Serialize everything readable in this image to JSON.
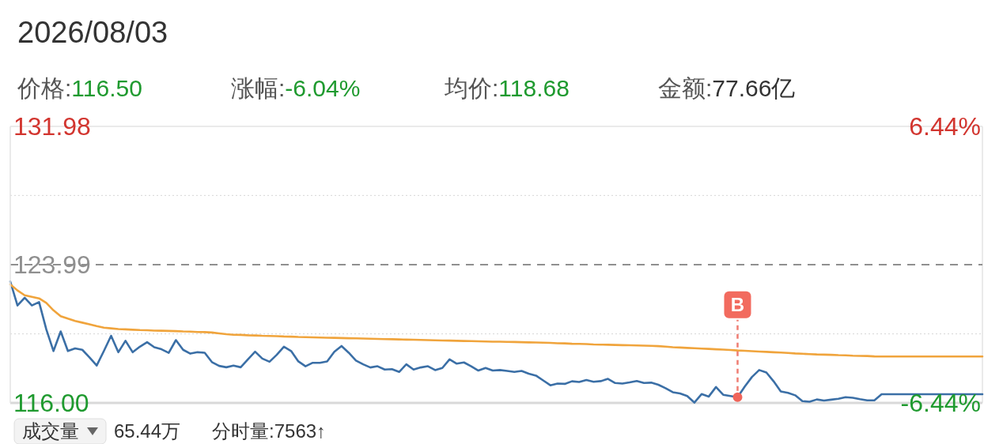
{
  "chart_data": {
    "type": "line",
    "title": "2026/08/03",
    "categories": [
      null,
      null,
      null,
      null,
      null,
      null,
      null,
      null,
      null,
      null,
      null,
      null,
      null,
      null,
      null,
      null,
      null,
      null,
      null,
      null,
      null,
      null,
      null,
      null,
      null,
      null,
      null,
      null,
      null,
      null,
      null,
      null,
      null,
      null,
      null,
      null,
      null,
      null,
      null,
      null,
      null,
      null,
      null,
      null,
      null,
      null,
      null,
      null,
      null,
      null,
      null,
      null,
      null,
      null,
      null,
      null,
      null,
      null,
      null,
      null,
      null,
      null,
      null,
      null,
      null,
      null,
      null,
      null,
      null,
      null,
      null,
      null,
      null,
      null,
      null,
      null,
      null,
      null,
      null,
      null,
      null,
      null,
      null,
      null,
      null,
      null,
      null,
      null,
      null,
      null,
      null,
      null,
      null,
      null,
      null,
      null,
      null,
      null,
      null,
      null,
      null,
      null,
      null,
      null,
      null,
      null,
      null,
      null,
      null,
      null,
      null,
      null,
      null,
      null,
      null,
      null,
      null,
      null,
      null,
      null,
      null,
      null,
      null,
      null,
      null,
      null,
      null,
      null,
      null,
      null,
      null,
      null,
      null,
      null,
      null,
      null
    ],
    "ylim": [
      116.0,
      131.98
    ],
    "yticks": [
      131.98,
      {
        "value": 127.99,
        "label": null
      },
      123.99,
      {
        "value": 119.99,
        "label": null
      },
      {
        "value": 116,
        "label": "116.00"
      }
    ],
    "y2lim": [
      -6.44,
      6.44
    ],
    "y2ticks": [
      {
        "value": 6.44,
        "label": "6.44%"
      },
      {
        "value": -6.44,
        "label": "-6.44%"
      }
    ],
    "grid": "y",
    "ref_lines": [
      {
        "axis": "y",
        "value": 123.99,
        "color": "#8f8f8f",
        "line_style": "dashed"
      }
    ],
    "series": [
      {
        "color": "#3b6fa6",
        "values": [
          123.02,
          121.63,
          122.08,
          121.63,
          121.83,
          120.25,
          119.0,
          120.13,
          119.0,
          119.15,
          119.07,
          118.63,
          118.16,
          119.0,
          119.88,
          118.93,
          119.59,
          118.93,
          119.25,
          119.51,
          119.22,
          119.1,
          118.89,
          119.63,
          119.07,
          118.85,
          118.93,
          118.9,
          118.36,
          118.14,
          118.06,
          118.16,
          118.06,
          118.52,
          118.96,
          118.56,
          118.38,
          118.78,
          119.25,
          119.0,
          118.4,
          118.12,
          118.32,
          118.32,
          118.4,
          118.96,
          119.29,
          118.9,
          118.45,
          118.23,
          118.05,
          118.12,
          117.93,
          117.95,
          117.79,
          118.23,
          117.93,
          118.05,
          118.12,
          117.9,
          118.02,
          118.52,
          118.27,
          118.34,
          118.12,
          117.87,
          118.02,
          117.87,
          117.9,
          117.85,
          117.79,
          117.85,
          117.69,
          117.58,
          117.3,
          117.02,
          117.12,
          117.1,
          117.25,
          117.21,
          117.32,
          117.22,
          117.26,
          117.39,
          117.15,
          117.12,
          117.19,
          117.27,
          117.15,
          117.17,
          117.05,
          116.85,
          116.62,
          116.55,
          116.4,
          116.02,
          116.51,
          116.37,
          116.92,
          116.47,
          116.4,
          116.33,
          116.95,
          117.5,
          117.9,
          117.76,
          117.25,
          116.66,
          116.58,
          116.44,
          116.1,
          116.07,
          116.2,
          116.14,
          116.19,
          116.24,
          116.33,
          116.3,
          116.22,
          116.15,
          116.15,
          116.5,
          116.5,
          116.5,
          116.5,
          116.5,
          116.5,
          116.5,
          116.5,
          116.5,
          116.5,
          116.5,
          116.5,
          116.5,
          116.5,
          116.5
        ]
      },
      {
        "color": "#f0a43c",
        "values": [
          122.85,
          122.5,
          122.22,
          122.13,
          122.04,
          121.78,
          121.35,
          121.01,
          120.87,
          120.74,
          120.64,
          120.54,
          120.44,
          120.35,
          120.31,
          120.27,
          120.25,
          120.23,
          120.21,
          120.2,
          120.18,
          120.17,
          120.16,
          120.15,
          120.13,
          120.12,
          120.1,
          120.09,
          120.07,
          120.02,
          119.97,
          119.94,
          119.93,
          119.91,
          119.9,
          119.88,
          119.87,
          119.86,
          119.84,
          119.83,
          119.81,
          119.8,
          119.79,
          119.78,
          119.77,
          119.76,
          119.75,
          119.74,
          119.73,
          119.72,
          119.71,
          119.7,
          119.69,
          119.68,
          119.67,
          119.66,
          119.65,
          119.64,
          119.63,
          119.62,
          119.61,
          119.6,
          119.59,
          119.58,
          119.57,
          119.56,
          119.55,
          119.54,
          119.54,
          119.53,
          119.52,
          119.51,
          119.5,
          119.49,
          119.48,
          119.47,
          119.45,
          119.44,
          119.42,
          119.41,
          119.4,
          119.38,
          119.37,
          119.36,
          119.35,
          119.34,
          119.33,
          119.32,
          119.31,
          119.3,
          119.28,
          119.25,
          119.22,
          119.2,
          119.18,
          119.16,
          119.14,
          119.12,
          119.1,
          119.08,
          119.06,
          119.03,
          119.01,
          118.99,
          118.97,
          118.95,
          118.93,
          118.91,
          118.89,
          118.86,
          118.84,
          118.82,
          118.8,
          118.79,
          118.78,
          118.76,
          118.75,
          118.73,
          118.72,
          118.71,
          118.69,
          118.68,
          118.68,
          118.68,
          118.68,
          118.68,
          118.68,
          118.68,
          118.68,
          118.68,
          118.68,
          118.68,
          118.68,
          118.68,
          118.68,
          118.68
        ]
      },
      {
        "type": "scatter",
        "marker": "circle",
        "color": "#f0645a",
        "values": [
          null,
          null,
          null,
          null,
          null,
          null,
          null,
          null,
          null,
          null,
          null,
          null,
          null,
          null,
          null,
          null,
          null,
          null,
          null,
          null,
          null,
          null,
          null,
          null,
          null,
          null,
          null,
          null,
          null,
          null,
          null,
          null,
          null,
          null,
          null,
          null,
          null,
          null,
          null,
          null,
          null,
          null,
          null,
          null,
          null,
          null,
          null,
          null,
          null,
          null,
          null,
          null,
          null,
          null,
          null,
          null,
          null,
          null,
          null,
          null,
          null,
          null,
          null,
          null,
          null,
          null,
          null,
          null,
          null,
          null,
          null,
          null,
          null,
          null,
          null,
          null,
          null,
          null,
          null,
          null,
          null,
          null,
          null,
          null,
          null,
          null,
          null,
          null,
          null,
          null,
          null,
          null,
          null,
          null,
          null,
          null,
          null,
          null,
          null,
          null,
          null,
          116.33,
          null,
          null,
          null,
          null,
          null,
          null,
          null,
          null,
          null,
          null,
          null,
          null,
          null,
          null,
          null,
          null,
          null,
          null,
          null,
          null,
          null,
          null,
          null,
          null,
          null,
          null,
          null,
          null,
          null,
          null,
          null,
          null,
          null,
          null
        ]
      }
    ],
    "annotations": [
      "价格:116.50",
      "涨幅:-6.04%",
      "均价:118.68",
      "金额:77.66亿",
      "成交量",
      "65.44万",
      "分时量:7563↑",
      {
        "text": "B",
        "y": 116.33
      }
    ]
  }
}
